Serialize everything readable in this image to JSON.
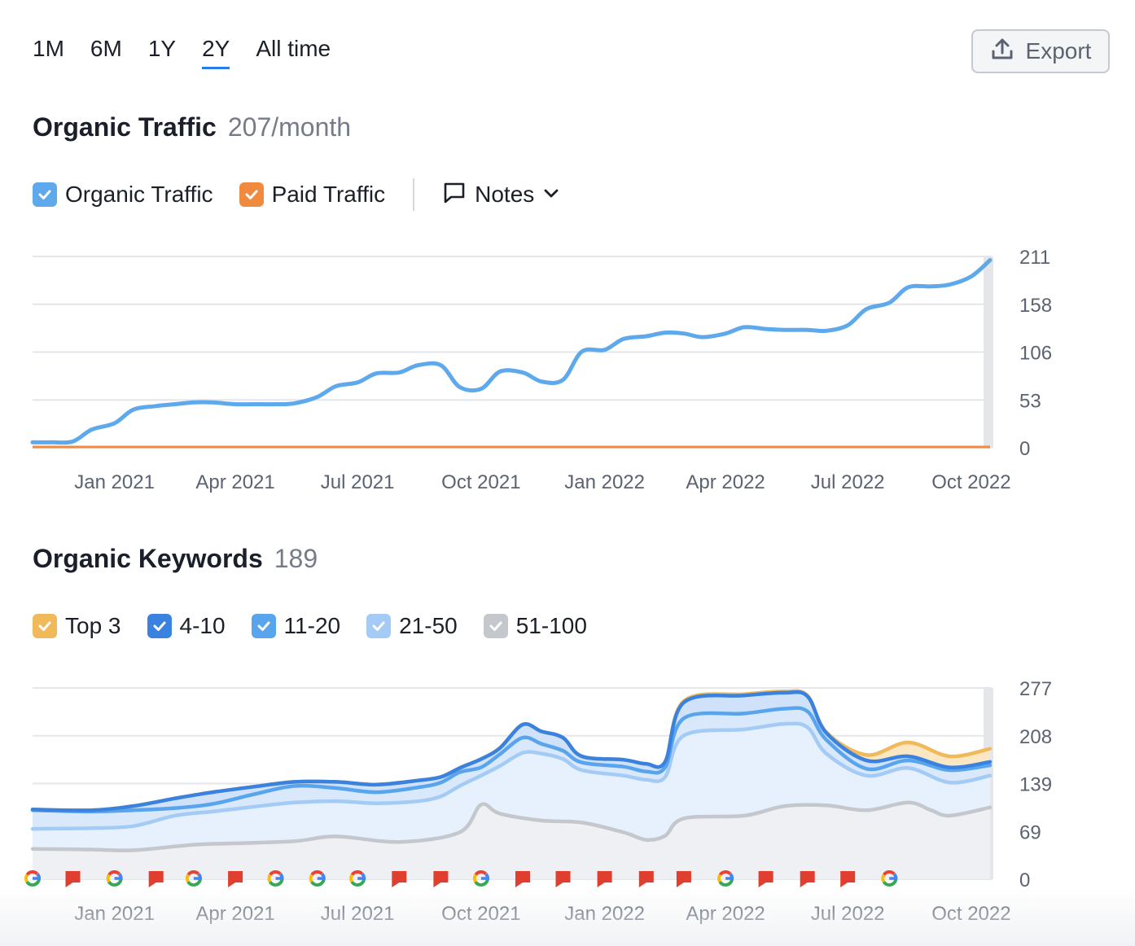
{
  "periods": [
    {
      "label": "1M",
      "active": false
    },
    {
      "label": "6M",
      "active": false
    },
    {
      "label": "1Y",
      "active": false
    },
    {
      "label": "2Y",
      "active": true
    },
    {
      "label": "All time",
      "active": false
    }
  ],
  "export_label": "Export",
  "traffic": {
    "title": "Organic Traffic",
    "value": "207/month",
    "legend": {
      "organic": "Organic Traffic",
      "paid": "Paid Traffic",
      "notes": "Notes"
    }
  },
  "keywords": {
    "title": "Organic Keywords",
    "value": "189",
    "legend": [
      "Top 3",
      "4-10",
      "11-20",
      "21-50",
      "51-100"
    ]
  },
  "colors": {
    "organic": "#5ea8ec",
    "paid": "#f08a3e",
    "top3": "#f0b95a",
    "k4_10": "#3a82e0",
    "k11_20": "#58a5ee",
    "k21_50": "#a3cbf5",
    "k51_100": "#c4c7cc",
    "grid": "#e3e6ea",
    "notes_flag": "#e03e2e"
  },
  "chart_data": [
    {
      "type": "line",
      "title": "Organic Traffic",
      "x_ticks": [
        "Jan 2021",
        "Apr 2021",
        "Jul 2021",
        "Oct 2021",
        "Jan 2022",
        "Apr 2022",
        "Jul 2022",
        "Oct 2022"
      ],
      "y_ticks": [
        "211",
        "158",
        "106",
        "53",
        "0"
      ],
      "ylim": [
        0,
        211
      ],
      "x_start": "2020-11",
      "x_end": "2022-10",
      "grid": true,
      "series": [
        {
          "name": "Organic Traffic",
          "points": [
            [
              "2020-11-01",
              6
            ],
            [
              "2020-11-15",
              6
            ],
            [
              "2020-12-01",
              7
            ],
            [
              "2020-12-15",
              20
            ],
            [
              "2021-01-01",
              27
            ],
            [
              "2021-01-15",
              42
            ],
            [
              "2021-02-01",
              46
            ],
            [
              "2021-02-15",
              48
            ],
            [
              "2021-03-01",
              50
            ],
            [
              "2021-03-15",
              50
            ],
            [
              "2021-04-01",
              48
            ],
            [
              "2021-04-15",
              48
            ],
            [
              "2021-05-01",
              48
            ],
            [
              "2021-05-15",
              49
            ],
            [
              "2021-06-01",
              56
            ],
            [
              "2021-06-15",
              68
            ],
            [
              "2021-07-01",
              72
            ],
            [
              "2021-07-15",
              82
            ],
            [
              "2021-08-01",
              83
            ],
            [
              "2021-08-15",
              91
            ],
            [
              "2021-09-01",
              91
            ],
            [
              "2021-09-15",
              67
            ],
            [
              "2021-10-01",
              65
            ],
            [
              "2021-10-15",
              84
            ],
            [
              "2021-11-01",
              83
            ],
            [
              "2021-11-15",
              73
            ],
            [
              "2021-12-01",
              75
            ],
            [
              "2021-12-15",
              106
            ],
            [
              "2022-01-01",
              108
            ],
            [
              "2022-01-15",
              120
            ],
            [
              "2022-02-01",
              123
            ],
            [
              "2022-02-15",
              127
            ],
            [
              "2022-03-01",
              126
            ],
            [
              "2022-03-15",
              122
            ],
            [
              "2022-04-01",
              126
            ],
            [
              "2022-04-15",
              133
            ],
            [
              "2022-05-01",
              131
            ],
            [
              "2022-05-15",
              130
            ],
            [
              "2022-06-01",
              130
            ],
            [
              "2022-06-15",
              129
            ],
            [
              "2022-07-01",
              135
            ],
            [
              "2022-07-15",
              153
            ],
            [
              "2022-08-01",
              160
            ],
            [
              "2022-08-15",
              177
            ],
            [
              "2022-09-01",
              178
            ],
            [
              "2022-09-15",
              180
            ],
            [
              "2022-10-01",
              189
            ],
            [
              "2022-10-15",
              207
            ]
          ]
        },
        {
          "name": "Paid Traffic",
          "points": [
            [
              "2020-11-01",
              0
            ],
            [
              "2022-10-15",
              0
            ]
          ]
        }
      ]
    },
    {
      "type": "area",
      "title": "Organic Keywords",
      "x_ticks": [
        "Jan 2021",
        "Apr 2021",
        "Jul 2021",
        "Oct 2021",
        "Jan 2022",
        "Apr 2022",
        "Jul 2022",
        "Oct 2022"
      ],
      "y_ticks": [
        "277",
        "208",
        "139",
        "69",
        "0"
      ],
      "ylim": [
        0,
        277
      ],
      "grid": true,
      "stacked_cumulative": true,
      "series": [
        {
          "name": "51-100",
          "points": [
            [
              "2020-11-01",
              44
            ],
            [
              "2020-12-15",
              43
            ],
            [
              "2021-01-15",
              42
            ],
            [
              "2021-03-01",
              50
            ],
            [
              "2021-04-01",
              52
            ],
            [
              "2021-05-15",
              55
            ],
            [
              "2021-06-15",
              62
            ],
            [
              "2021-08-01",
              54
            ],
            [
              "2021-09-15",
              68
            ],
            [
              "2021-10-01",
              108
            ],
            [
              "2021-10-15",
              95
            ],
            [
              "2021-11-15",
              85
            ],
            [
              "2021-12-15",
              82
            ],
            [
              "2022-01-15",
              68
            ],
            [
              "2022-02-01",
              57
            ],
            [
              "2022-02-15",
              63
            ],
            [
              "2022-03-01",
              88
            ],
            [
              "2022-04-15",
              92
            ],
            [
              "2022-05-15",
              106
            ],
            [
              "2022-06-15",
              107
            ],
            [
              "2022-07-15",
              100
            ],
            [
              "2022-08-15",
              111
            ],
            [
              "2022-09-01",
              100
            ],
            [
              "2022-09-15",
              92
            ],
            [
              "2022-10-15",
              104
            ]
          ]
        },
        {
          "name": "21-50",
          "points": [
            [
              "2020-11-01",
              73
            ],
            [
              "2020-12-15",
              74
            ],
            [
              "2021-01-15",
              77
            ],
            [
              "2021-02-15",
              92
            ],
            [
              "2021-03-15",
              98
            ],
            [
              "2021-04-15",
              105
            ],
            [
              "2021-05-15",
              111
            ],
            [
              "2021-06-15",
              113
            ],
            [
              "2021-07-15",
              110
            ],
            [
              "2021-08-15",
              113
            ],
            [
              "2021-09-01",
              120
            ],
            [
              "2021-09-15",
              135
            ],
            [
              "2021-10-01",
              150
            ],
            [
              "2021-10-15",
              164
            ],
            [
              "2021-11-01",
              183
            ],
            [
              "2021-11-15",
              182
            ],
            [
              "2021-12-01",
              174
            ],
            [
              "2021-12-15",
              158
            ],
            [
              "2022-01-15",
              150
            ],
            [
              "2022-02-01",
              144
            ],
            [
              "2022-02-15",
              148
            ],
            [
              "2022-03-01",
              208
            ],
            [
              "2022-04-15",
              217
            ],
            [
              "2022-05-15",
              225
            ],
            [
              "2022-06-01",
              220
            ],
            [
              "2022-06-15",
              182
            ],
            [
              "2022-07-15",
              150
            ],
            [
              "2022-08-15",
              161
            ],
            [
              "2022-09-15",
              140
            ],
            [
              "2022-10-15",
              150
            ]
          ]
        },
        {
          "name": "11-20",
          "points": [
            [
              "2020-11-01",
              100
            ],
            [
              "2020-12-15",
              98
            ],
            [
              "2021-01-15",
              100
            ],
            [
              "2021-02-15",
              103
            ],
            [
              "2021-03-15",
              109
            ],
            [
              "2021-04-15",
              123
            ],
            [
              "2021-05-15",
              135
            ],
            [
              "2021-06-15",
              132
            ],
            [
              "2021-07-15",
              126
            ],
            [
              "2021-08-15",
              133
            ],
            [
              "2021-09-01",
              140
            ],
            [
              "2021-09-15",
              155
            ],
            [
              "2021-10-01",
              162
            ],
            [
              "2021-10-15",
              181
            ],
            [
              "2021-11-01",
              205
            ],
            [
              "2021-11-15",
              196
            ],
            [
              "2021-12-01",
              186
            ],
            [
              "2021-12-15",
              169
            ],
            [
              "2022-01-15",
              163
            ],
            [
              "2022-02-01",
              156
            ],
            [
              "2022-02-15",
              162
            ],
            [
              "2022-03-01",
              233
            ],
            [
              "2022-04-15",
              240
            ],
            [
              "2022-05-15",
              247
            ],
            [
              "2022-06-01",
              243
            ],
            [
              "2022-06-15",
              202
            ],
            [
              "2022-07-15",
              160
            ],
            [
              "2022-08-15",
              172
            ],
            [
              "2022-09-15",
              158
            ],
            [
              "2022-10-15",
              165
            ]
          ]
        },
        {
          "name": "4-10",
          "points": [
            [
              "2020-11-01",
              101
            ],
            [
              "2020-12-15",
              100
            ],
            [
              "2021-01-15",
              106
            ],
            [
              "2021-02-15",
              117
            ],
            [
              "2021-03-15",
              126
            ],
            [
              "2021-04-15",
              134
            ],
            [
              "2021-05-15",
              141
            ],
            [
              "2021-06-15",
              141
            ],
            [
              "2021-07-15",
              137
            ],
            [
              "2021-08-15",
              143
            ],
            [
              "2021-09-01",
              148
            ],
            [
              "2021-09-15",
              161
            ],
            [
              "2021-10-01",
              174
            ],
            [
              "2021-10-15",
              190
            ],
            [
              "2021-11-01",
              224
            ],
            [
              "2021-11-15",
              214
            ],
            [
              "2021-12-01",
              205
            ],
            [
              "2021-12-15",
              178
            ],
            [
              "2022-01-15",
              173
            ],
            [
              "2022-02-01",
              167
            ],
            [
              "2022-02-15",
              170
            ],
            [
              "2022-03-01",
              256
            ],
            [
              "2022-04-15",
              266
            ],
            [
              "2022-05-15",
              270
            ],
            [
              "2022-06-01",
              265
            ],
            [
              "2022-06-15",
              212
            ],
            [
              "2022-07-15",
              172
            ],
            [
              "2022-08-15",
              178
            ],
            [
              "2022-09-15",
              162
            ],
            [
              "2022-10-15",
              170
            ]
          ]
        },
        {
          "name": "Top 3",
          "points": [
            [
              "2020-11-01",
              101
            ],
            [
              "2020-12-15",
              100
            ],
            [
              "2021-01-15",
              106
            ],
            [
              "2021-02-15",
              117
            ],
            [
              "2021-03-15",
              126
            ],
            [
              "2021-04-15",
              134
            ],
            [
              "2021-05-15",
              141
            ],
            [
              "2021-06-15",
              141
            ],
            [
              "2021-07-15",
              137
            ],
            [
              "2021-08-15",
              143
            ],
            [
              "2021-09-01",
              148
            ],
            [
              "2021-09-15",
              161
            ],
            [
              "2021-10-01",
              174
            ],
            [
              "2021-10-15",
              190
            ],
            [
              "2021-11-01",
              224
            ],
            [
              "2021-11-15",
              214
            ],
            [
              "2021-12-01",
              205
            ],
            [
              "2021-12-15",
              178
            ],
            [
              "2022-01-15",
              173
            ],
            [
              "2022-02-01",
              167
            ],
            [
              "2022-02-15",
              170
            ],
            [
              "2022-03-01",
              258
            ],
            [
              "2022-04-15",
              268
            ],
            [
              "2022-05-15",
              272
            ],
            [
              "2022-06-01",
              266
            ],
            [
              "2022-06-15",
              213
            ],
            [
              "2022-07-15",
              180
            ],
            [
              "2022-08-15",
              198
            ],
            [
              "2022-09-15",
              178
            ],
            [
              "2022-10-15",
              189
            ]
          ]
        }
      ],
      "markers": [
        {
          "type": "google",
          "date": "2020-11-01"
        },
        {
          "type": "note",
          "date": "2020-12-01"
        },
        {
          "type": "google",
          "date": "2021-01-01"
        },
        {
          "type": "note",
          "date": "2021-02-01"
        },
        {
          "type": "google",
          "date": "2021-03-01"
        },
        {
          "type": "note",
          "date": "2021-04-01"
        },
        {
          "type": "google",
          "date": "2021-05-01"
        },
        {
          "type": "google",
          "date": "2021-06-01"
        },
        {
          "type": "google",
          "date": "2021-07-01"
        },
        {
          "type": "note",
          "date": "2021-08-01"
        },
        {
          "type": "note",
          "date": "2021-09-01"
        },
        {
          "type": "google",
          "date": "2021-10-01"
        },
        {
          "type": "note",
          "date": "2021-11-01"
        },
        {
          "type": "note",
          "date": "2021-12-01"
        },
        {
          "type": "note",
          "date": "2022-01-01"
        },
        {
          "type": "note",
          "date": "2022-02-01"
        },
        {
          "type": "note",
          "date": "2022-03-01"
        },
        {
          "type": "google",
          "date": "2022-04-01"
        },
        {
          "type": "note",
          "date": "2022-05-01"
        },
        {
          "type": "note",
          "date": "2022-06-01"
        },
        {
          "type": "note",
          "date": "2022-07-01"
        },
        {
          "type": "google",
          "date": "2022-08-01"
        }
      ]
    }
  ]
}
